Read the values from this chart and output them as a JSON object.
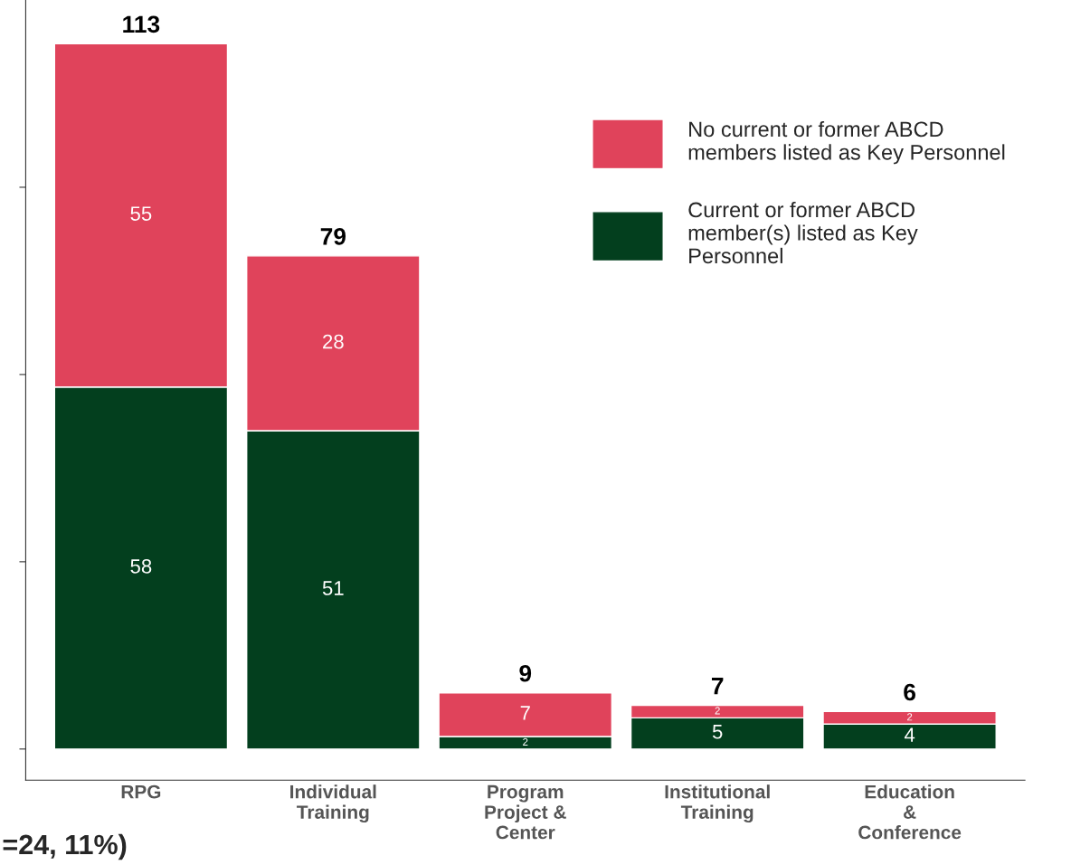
{
  "chart_data": {
    "type": "bar",
    "stacked": true,
    "categories": [
      "RPG",
      "Individual\nTraining",
      "Program\nProject &\nCenter",
      "Institutional\nTraining",
      "Education\n&\nConference"
    ],
    "series": [
      {
        "name": "Current or former ABCD\nmember(s) listed as Key\nPersonnel",
        "color": "#033f1e",
        "values": [
          58,
          51,
          2,
          5,
          4
        ]
      },
      {
        "name": "No current or former ABCD\nmembers listed as Key Personnel",
        "color": "#e0435b",
        "values": [
          55,
          28,
          7,
          2,
          2
        ]
      }
    ],
    "totals": [
      "113",
      "79",
      "9",
      "7",
      "6"
    ],
    "data_labels": true,
    "ylim": [
      -5,
      120
    ],
    "yticks": [
      {
        "value": 0,
        "label": null
      },
      {
        "value": 30,
        "label": null
      },
      {
        "value": 60,
        "label": null
      },
      {
        "value": 90,
        "label": null
      }
    ],
    "tick_labels": "x",
    "grid": false,
    "legend": "top right",
    "annotations": [
      "=24, 11%)"
    ]
  }
}
